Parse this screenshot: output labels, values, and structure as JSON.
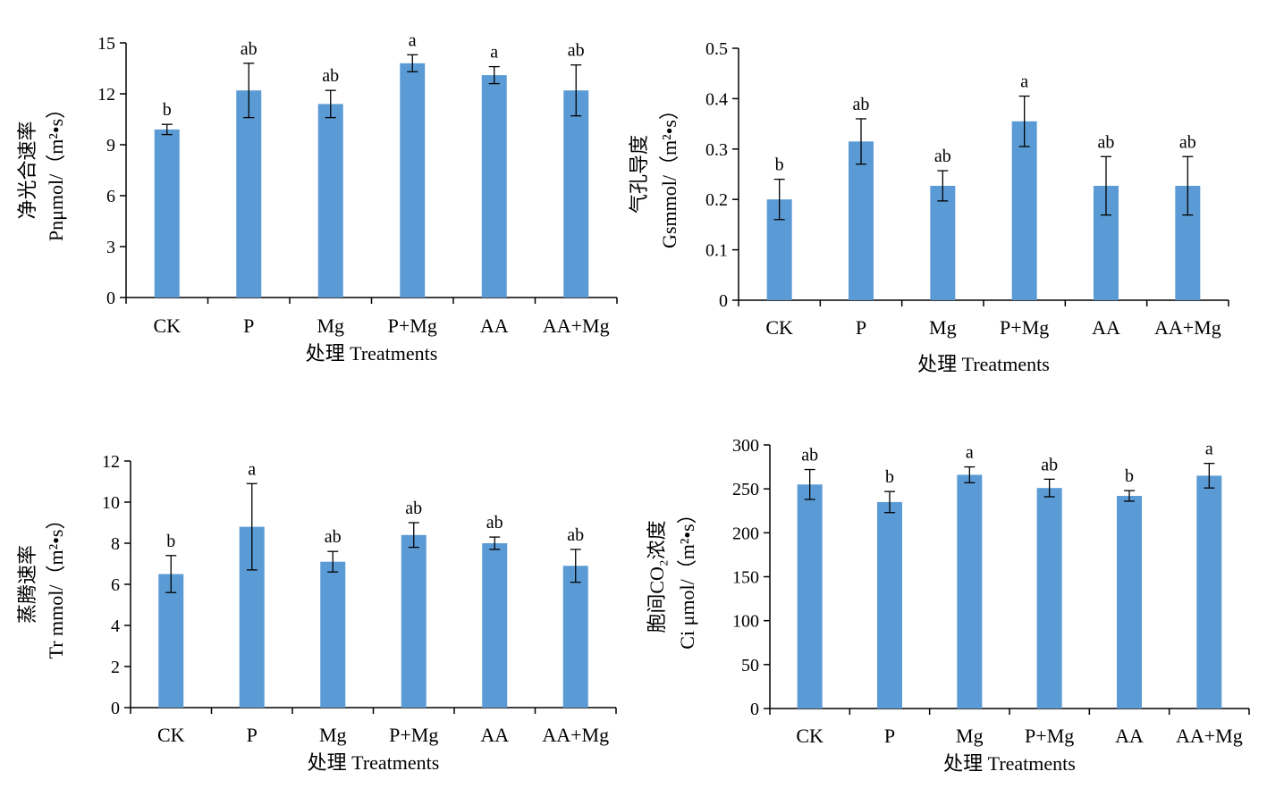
{
  "bar_color": "#5b9bd5",
  "chart_data": [
    {
      "type": "bar",
      "categories": [
        "CK",
        "P",
        "Mg",
        "P+Mg",
        "AA",
        "AA+Mg"
      ],
      "values": [
        9.9,
        12.2,
        11.4,
        13.8,
        13.1,
        12.2
      ],
      "errors": [
        0.3,
        1.6,
        0.8,
        0.5,
        0.5,
        1.5
      ],
      "letters": [
        "b",
        "ab",
        "ab",
        "a",
        "a",
        "ab"
      ],
      "ylim": [
        0,
        15
      ],
      "yticks": [
        0,
        3,
        6,
        9,
        12,
        15
      ],
      "ytick_labels": [
        "0",
        "3",
        "6",
        "9",
        "12",
        "15"
      ],
      "ylabel_cn": "净光合速率",
      "ylabel_en": "Pnμmol/（m²•s）",
      "xlabel": "处理  Treatments"
    },
    {
      "type": "bar",
      "categories": [
        "CK",
        "P",
        "Mg",
        "P+Mg",
        "AA",
        "AA+Mg"
      ],
      "values": [
        0.2,
        0.315,
        0.227,
        0.355,
        0.227,
        0.227
      ],
      "errors": [
        0.04,
        0.045,
        0.03,
        0.05,
        0.058,
        0.058
      ],
      "letters": [
        "b",
        "ab",
        "ab",
        "a",
        "ab",
        "ab"
      ],
      "ylim": [
        0,
        0.5
      ],
      "yticks": [
        0,
        0.1,
        0.2,
        0.3,
        0.4,
        0.5
      ],
      "ytick_labels": [
        "0",
        "0.1",
        "0.2",
        "0.3",
        "0.4",
        "0.5"
      ],
      "ylabel_cn": "气孔导度",
      "ylabel_en": "Gsmmol/（m²•s）",
      "xlabel": "处理 Treatments"
    },
    {
      "type": "bar",
      "categories": [
        "CK",
        "P",
        "Mg",
        "P+Mg",
        "AA",
        "AA+Mg"
      ],
      "values": [
        6.5,
        8.8,
        7.1,
        8.4,
        8.0,
        6.9
      ],
      "errors": [
        0.9,
        2.1,
        0.5,
        0.6,
        0.3,
        0.8
      ],
      "letters": [
        "b",
        "a",
        "ab",
        "ab",
        "ab",
        "ab"
      ],
      "ylim": [
        0,
        12
      ],
      "yticks": [
        0,
        2,
        4,
        6,
        8,
        10,
        12
      ],
      "ytick_labels": [
        "0",
        "2",
        "4",
        "6",
        "8",
        "10",
        "12"
      ],
      "ylabel_cn": "蒸腾速率",
      "ylabel_en": "Tr mmol/（m²•s）",
      "xlabel": "处理  Treatments"
    },
    {
      "type": "bar",
      "categories": [
        "CK",
        "P",
        "Mg",
        "P+Mg",
        "AA",
        "AA+Mg"
      ],
      "values": [
        255,
        235,
        266,
        251,
        242,
        265
      ],
      "errors": [
        17,
        12,
        9,
        10,
        6,
        14
      ],
      "letters": [
        "ab",
        "b",
        "a",
        "ab",
        "b",
        "a"
      ],
      "ylim": [
        0,
        300
      ],
      "yticks": [
        0,
        50,
        100,
        150,
        200,
        250,
        300
      ],
      "ytick_labels": [
        "0",
        "50",
        "100",
        "150",
        "200",
        "250",
        "300"
      ],
      "ylabel_cn": "胞间CO₂浓度",
      "ylabel_en": "Ci μmol/（m²•s）",
      "xlabel": "处理  Treatments"
    }
  ]
}
